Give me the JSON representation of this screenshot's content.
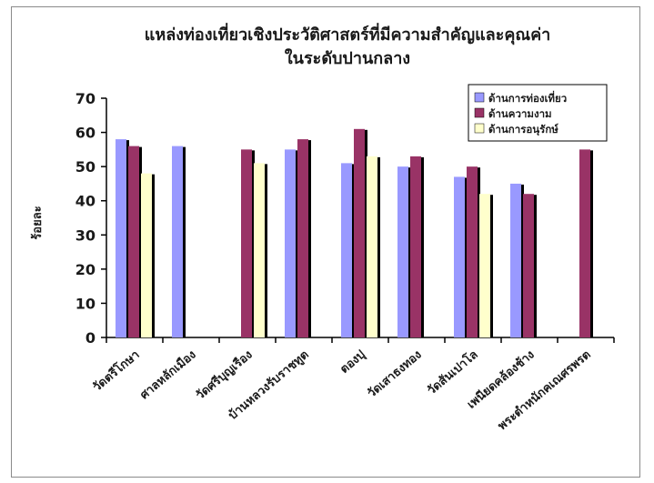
{
  "chart_data": {
    "type": "bar",
    "title": "แหล่งท่องเที่ยวเชิงประวัติศาสตร์ที่มีความสำคัญและคุณค่า",
    "subtitle": "ในระดับปานกลาง",
    "xlabel": "",
    "ylabel": "ร้อยละ",
    "ylim": [
      0,
      70
    ],
    "yticks": [
      "0",
      "10",
      "20",
      "30",
      "40",
      "50",
      "60",
      "70"
    ],
    "categories": [
      "วัดตรีโกษา",
      "ศาลหลักเมือง",
      "วัดศรีบุญเรือง",
      "บ้านหลวงรับราชทูต",
      "ตองปุ",
      "วัดเสาธงทอง",
      "วัดสันเปาโล",
      "เพนียดคล้องช้าง",
      "พระตำหนักคเณศรพรต"
    ],
    "series": [
      {
        "name": "ด้านการท่องเที่ยว",
        "color": "#9999ff",
        "values": [
          58,
          56,
          null,
          55,
          51,
          50,
          47,
          45,
          null
        ]
      },
      {
        "name": "ด้านความงาม",
        "color": "#993366",
        "values": [
          56,
          null,
          55,
          58,
          61,
          53,
          50,
          42,
          55
        ]
      },
      {
        "name": "ด้านการอนุรักษ์",
        "color": "#ffffcc",
        "values": [
          48,
          null,
          51,
          null,
          53,
          null,
          42,
          null,
          null
        ]
      }
    ],
    "grid": false,
    "legend_position": "top-right"
  }
}
